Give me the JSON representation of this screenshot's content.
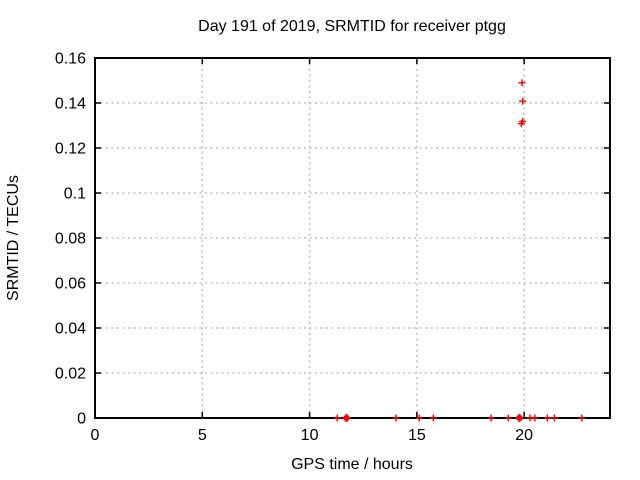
{
  "colors": {
    "background": "#ffffff",
    "grid": "#c0c0c0",
    "axis": "#000000",
    "text": "#000000",
    "marker": "#ff0000"
  },
  "chart_data": {
    "type": "scatter",
    "title": "Day 191 of 2019, SRMTID for receiver ptgg",
    "xlabel": "GPS time / hours",
    "ylabel": "SRMTID / TECUs",
    "xlim": [
      0,
      24
    ],
    "ylim": [
      0,
      0.16
    ],
    "grid": true,
    "legend_position": "none",
    "marker_style": "plus",
    "marker_color": "#ff0000",
    "x_ticks": {
      "values": [
        0,
        5,
        10,
        15,
        20
      ],
      "labels": [
        "0",
        "5",
        "10",
        "15",
        "20"
      ]
    },
    "y_ticks": {
      "values": [
        0,
        0.02,
        0.04,
        0.06,
        0.08,
        0.1,
        0.12,
        0.14,
        0.16
      ],
      "labels": [
        "0",
        "0.02",
        "0.04",
        "0.06",
        "0.08",
        "0.1",
        "0.12",
        "0.14",
        "0.16"
      ]
    },
    "series": [
      {
        "name": "SRMTID",
        "points": [
          {
            "x": 11.29,
            "y": 0
          },
          {
            "x": 11.72,
            "y": 0,
            "bold": true
          },
          {
            "x": 14.03,
            "y": 0
          },
          {
            "x": 15.11,
            "y": 0
          },
          {
            "x": 15.77,
            "y": 0
          },
          {
            "x": 18.46,
            "y": 0
          },
          {
            "x": 19.26,
            "y": 0
          },
          {
            "x": 19.78,
            "y": 0,
            "bold": true
          },
          {
            "x": 20.27,
            "y": 0
          },
          {
            "x": 20.5,
            "y": 0
          },
          {
            "x": 21.08,
            "y": 0
          },
          {
            "x": 21.41,
            "y": 0
          },
          {
            "x": 22.69,
            "y": 0
          },
          {
            "x": 19.9,
            "y": 0.149
          },
          {
            "x": 19.93,
            "y": 0.1408
          },
          {
            "x": 19.87,
            "y": 0.1308
          },
          {
            "x": 19.93,
            "y": 0.1318
          }
        ]
      }
    ]
  }
}
